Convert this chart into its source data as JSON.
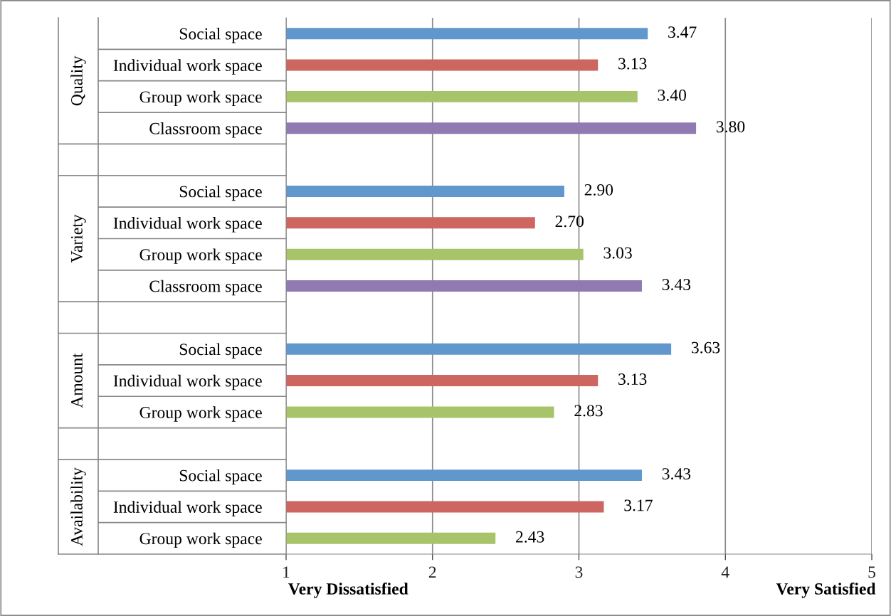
{
  "chart_data": {
    "type": "bar",
    "orientation": "horizontal",
    "categories": [
      "Social space",
      "Individual work space",
      "Group work space",
      "Classroom space",
      null,
      "Social space",
      "Individual work space",
      "Group work space",
      "Classroom space",
      null,
      "Social space",
      "Individual work space",
      "Group work space",
      null,
      "Social space",
      "Individual work space",
      "Group work space"
    ],
    "values": [
      3.47,
      3.13,
      3.4,
      3.8,
      null,
      2.9,
      2.7,
      3.03,
      3.43,
      null,
      3.63,
      3.13,
      2.83,
      null,
      3.43,
      3.17,
      2.43
    ],
    "value_labels": [
      "3.47",
      "3.13",
      "3.40",
      "3.80",
      null,
      "2.90",
      "2.70",
      "3.03",
      "3.43",
      null,
      "3.63",
      "3.13",
      "2.83",
      null,
      "3.43",
      "3.17",
      "2.43"
    ],
    "colors": [
      "#6097cc",
      "#cd6560",
      "#a8c46a",
      "#9179b2",
      null,
      "#6097cc",
      "#cd6560",
      "#a8c46a",
      "#9179b2",
      null,
      "#6097cc",
      "#cd6560",
      "#a8c46a",
      null,
      "#6097cc",
      "#cd6560",
      "#a8c46a"
    ],
    "xlim": [
      1,
      5
    ],
    "xticks": [
      1,
      2,
      3,
      4,
      5
    ],
    "grid": "x",
    "annotations": [
      "Quality",
      "Variety",
      "Amount",
      "Availability",
      "Very Dissatisfied",
      "Very Satisfied"
    ]
  }
}
